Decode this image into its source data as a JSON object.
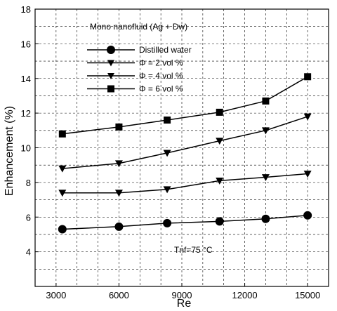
{
  "chart_data": {
    "type": "line",
    "annotation": "Mono nanofluid (Ag + Dw)",
    "condition_label": "Tnf=75 °C",
    "xlabel": "Re",
    "ylabel": "Enhancement  (%)",
    "xlim": [
      2000,
      16000
    ],
    "ylim": [
      2,
      18
    ],
    "x_ticks": [
      3000,
      6000,
      9000,
      12000,
      15000
    ],
    "y_ticks": [
      4,
      6,
      8,
      10,
      12,
      14,
      16,
      18
    ],
    "grid": "dashed",
    "legend_position": "upper-left",
    "x": [
      3300,
      6000,
      8300,
      10800,
      13000,
      15000
    ],
    "series": [
      {
        "name": "Distilled water",
        "marker": "circle",
        "values": [
          5.3,
          5.45,
          5.65,
          5.75,
          5.9,
          6.1
        ]
      },
      {
        "name": "Φ = 2 vol %",
        "marker": "triangle-down",
        "values": [
          7.4,
          7.4,
          7.6,
          8.1,
          8.3,
          8.5
        ]
      },
      {
        "name": "Φ = 4 vol %",
        "marker": "triangle-down",
        "values": [
          8.8,
          9.1,
          9.7,
          10.4,
          11.0,
          11.8
        ]
      },
      {
        "name": "Φ = 6 vol %",
        "marker": "square",
        "values": [
          10.8,
          11.2,
          11.6,
          12.05,
          12.7,
          14.1
        ]
      }
    ]
  }
}
